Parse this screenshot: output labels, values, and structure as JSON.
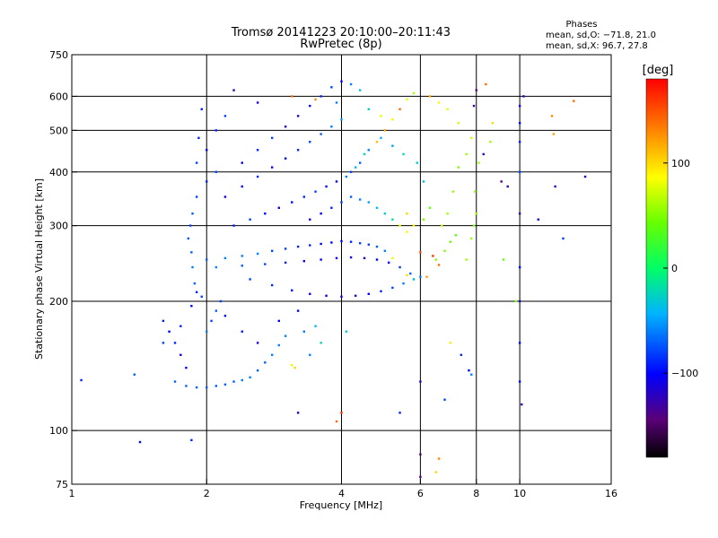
{
  "title": {
    "line1": "Tromsø 20141223 20:10:00–20:11:43",
    "line2": "RwPretec (8p)"
  },
  "stats": {
    "heading": "Phases",
    "line_o": "mean, sd,O: −71.8, 21.0",
    "line_x": "mean, sd,X: 96.7, 27.8"
  },
  "colorbar": {
    "unit_label": "[deg]",
    "range": [
      -180,
      180
    ],
    "ticks": [
      {
        "value": 100,
        "label": "100"
      },
      {
        "value": 0,
        "label": "0"
      },
      {
        "value": -100,
        "label": "−100"
      }
    ]
  },
  "chart_data": {
    "type": "scatter",
    "xlabel": "Frequency [MHz]",
    "ylabel": "Stationary phase Virtual Height [km]",
    "xscale": "log",
    "yscale": "log",
    "xlim": [
      1,
      16
    ],
    "ylim": [
      75,
      750
    ],
    "xticks": [
      {
        "value": 1,
        "label": "1"
      },
      {
        "value": 2,
        "label": "2"
      },
      {
        "value": 4,
        "label": "4"
      },
      {
        "value": 6,
        "label": "6"
      },
      {
        "value": 8,
        "label": "8"
      },
      {
        "value": 10,
        "label": "10"
      },
      {
        "value": 16,
        "label": "16"
      }
    ],
    "yticks": [
      {
        "value": 75,
        "label": "75"
      },
      {
        "value": 100,
        "label": "100"
      },
      {
        "value": 200,
        "label": "200"
      },
      {
        "value": 300,
        "label": "300"
      },
      {
        "value": 400,
        "label": "400"
      },
      {
        "value": 500,
        "label": "500"
      },
      {
        "value": 600,
        "label": "600"
      },
      {
        "value": 750,
        "label": "750"
      }
    ],
    "x_gridlines": [
      2,
      4,
      6,
      8,
      10
    ],
    "y_gridlines": [
      100,
      200,
      300,
      400,
      500,
      600
    ],
    "grid": true,
    "color_variable": "phase [deg]",
    "points": [
      [
        1.05,
        131,
        -90
      ],
      [
        1.42,
        94,
        -100
      ],
      [
        1.38,
        135,
        -70
      ],
      [
        1.6,
        160,
        -80
      ],
      [
        1.7,
        130,
        -70
      ],
      [
        1.8,
        127,
        -70
      ],
      [
        1.9,
        126,
        -70
      ],
      [
        2.0,
        126,
        -70
      ],
      [
        2.1,
        127,
        -70
      ],
      [
        2.2,
        128,
        -70
      ],
      [
        2.3,
        130,
        -70
      ],
      [
        2.4,
        131,
        -60
      ],
      [
        2.5,
        133,
        -60
      ],
      [
        2.6,
        138,
        -70
      ],
      [
        2.7,
        144,
        -70
      ],
      [
        2.8,
        150,
        -60
      ],
      [
        2.9,
        158,
        -60
      ],
      [
        3.0,
        166,
        -60
      ],
      [
        1.75,
        175,
        -90
      ],
      [
        1.85,
        195,
        -100
      ],
      [
        1.95,
        205,
        -80
      ],
      [
        2.2,
        185,
        -100
      ],
      [
        2.4,
        170,
        -90
      ],
      [
        2.6,
        160,
        -110
      ],
      [
        2.9,
        180,
        -100
      ],
      [
        3.2,
        190,
        -100
      ],
      [
        3.3,
        170,
        -60
      ],
      [
        3.4,
        150,
        -60
      ],
      [
        3.1,
        142,
        80
      ],
      [
        3.15,
        140,
        100
      ],
      [
        1.85,
        260,
        -70
      ],
      [
        1.82,
        280,
        -70
      ],
      [
        1.84,
        300,
        -80
      ],
      [
        1.86,
        320,
        -70
      ],
      [
        1.9,
        350,
        -80
      ],
      [
        1.9,
        420,
        -80
      ],
      [
        1.92,
        480,
        -90
      ],
      [
        1.95,
        560,
        -90
      ],
      [
        1.86,
        240,
        -60
      ],
      [
        1.88,
        220,
        -70
      ],
      [
        1.9,
        210,
        -90
      ],
      [
        2.0,
        250,
        -70
      ],
      [
        2.2,
        252,
        -60
      ],
      [
        2.4,
        255,
        -60
      ],
      [
        2.6,
        258,
        -60
      ],
      [
        2.8,
        262,
        -80
      ],
      [
        3.0,
        265,
        -80
      ],
      [
        3.2,
        268,
        -90
      ],
      [
        3.4,
        270,
        -90
      ],
      [
        3.6,
        272,
        -100
      ],
      [
        3.8,
        274,
        -100
      ],
      [
        4.0,
        276,
        -100
      ],
      [
        4.2,
        275,
        -90
      ],
      [
        4.4,
        273,
        -80
      ],
      [
        4.6,
        271,
        -80
      ],
      [
        4.8,
        268,
        -70
      ],
      [
        5.0,
        262,
        -60
      ],
      [
        5.2,
        252,
        80
      ],
      [
        5.4,
        240,
        100
      ],
      [
        5.6,
        230,
        100
      ],
      [
        5.8,
        225,
        110
      ],
      [
        2.1,
        240,
        -60
      ],
      [
        2.4,
        242,
        -70
      ],
      [
        2.7,
        244,
        -80
      ],
      [
        3.0,
        246,
        -90
      ],
      [
        3.3,
        248,
        -100
      ],
      [
        3.6,
        250,
        -100
      ],
      [
        3.9,
        252,
        -110
      ],
      [
        4.2,
        253,
        -110
      ],
      [
        4.5,
        252,
        -110
      ],
      [
        4.8,
        250,
        -100
      ],
      [
        5.1,
        246,
        -100
      ],
      [
        5.4,
        240,
        -80
      ],
      [
        5.7,
        232,
        -70
      ],
      [
        6.0,
        228,
        -60
      ],
      [
        2.5,
        225,
        -80
      ],
      [
        2.8,
        218,
        -90
      ],
      [
        3.1,
        212,
        -100
      ],
      [
        3.4,
        208,
        -110
      ],
      [
        3.7,
        206,
        -110
      ],
      [
        4.0,
        205,
        -110
      ],
      [
        4.3,
        206,
        -110
      ],
      [
        4.6,
        208,
        -100
      ],
      [
        4.9,
        211,
        -90
      ],
      [
        5.2,
        215,
        -80
      ],
      [
        5.5,
        220,
        -60
      ],
      [
        5.8,
        225,
        -40
      ],
      [
        6.2,
        228,
        120
      ],
      [
        6.6,
        243,
        140
      ],
      [
        6.4,
        255,
        160
      ],
      [
        6.0,
        260,
        150
      ],
      [
        6.5,
        250,
        55
      ],
      [
        6.8,
        262,
        50
      ],
      [
        7.0,
        275,
        45
      ],
      [
        7.2,
        285,
        40
      ],
      [
        6.7,
        300,
        70
      ],
      [
        6.9,
        320,
        60
      ],
      [
        7.1,
        360,
        55
      ],
      [
        7.3,
        410,
        50
      ],
      [
        7.6,
        250,
        60
      ],
      [
        7.8,
        280,
        55
      ],
      [
        7.9,
        300,
        50
      ],
      [
        8.0,
        320,
        55
      ],
      [
        7.95,
        360,
        50
      ],
      [
        8.1,
        420,
        60
      ],
      [
        7.8,
        480,
        70
      ],
      [
        2.3,
        300,
        -90
      ],
      [
        2.5,
        310,
        -80
      ],
      [
        2.7,
        320,
        -100
      ],
      [
        2.9,
        330,
        -110
      ],
      [
        3.1,
        340,
        -100
      ],
      [
        3.3,
        350,
        -90
      ],
      [
        3.5,
        360,
        -80
      ],
      [
        3.7,
        370,
        -100
      ],
      [
        3.9,
        380,
        -110
      ],
      [
        4.1,
        390,
        -60
      ],
      [
        4.3,
        410,
        -40
      ],
      [
        4.5,
        440,
        -20
      ],
      [
        4.8,
        470,
        110
      ],
      [
        5.0,
        500,
        120
      ],
      [
        5.2,
        530,
        90
      ],
      [
        5.4,
        560,
        140
      ],
      [
        5.6,
        590,
        80
      ],
      [
        5.8,
        610,
        60
      ],
      [
        2.4,
        420,
        -100
      ],
      [
        2.6,
        450,
        -90
      ],
      [
        2.8,
        480,
        -80
      ],
      [
        3.0,
        510,
        -110
      ],
      [
        3.2,
        540,
        -120
      ],
      [
        3.4,
        570,
        -100
      ],
      [
        3.6,
        600,
        -90
      ],
      [
        3.8,
        630,
        -80
      ],
      [
        4.0,
        650,
        -100
      ],
      [
        4.2,
        640,
        -60
      ],
      [
        4.4,
        620,
        -40
      ],
      [
        2.3,
        620,
        -120
      ],
      [
        2.6,
        580,
        -110
      ],
      [
        3.1,
        600,
        140
      ],
      [
        3.5,
        590,
        130
      ],
      [
        3.9,
        580,
        -60
      ],
      [
        4.6,
        560,
        -30
      ],
      [
        4.9,
        540,
        80
      ],
      [
        6.3,
        600,
        120
      ],
      [
        6.6,
        580,
        90
      ],
      [
        6.9,
        560,
        80
      ],
      [
        7.3,
        520,
        70
      ],
      [
        7.6,
        440,
        60
      ],
      [
        8.3,
        440,
        -120
      ],
      [
        8.6,
        470,
        60
      ],
      [
        8.7,
        520,
        100
      ],
      [
        9.1,
        380,
        -140
      ],
      [
        9.4,
        370,
        -120
      ],
      [
        8.4,
        640,
        140
      ],
      [
        8.0,
        620,
        -140
      ],
      [
        7.9,
        570,
        -130
      ],
      [
        10.2,
        600,
        -120
      ],
      [
        10.0,
        570,
        -110
      ],
      [
        10.0,
        520,
        -100
      ],
      [
        10.0,
        470,
        -90
      ],
      [
        10.0,
        400,
        -80
      ],
      [
        10.0,
        320,
        -130
      ],
      [
        10.0,
        240,
        -100
      ],
      [
        10.0,
        200,
        -120
      ],
      [
        10.0,
        160,
        -100
      ],
      [
        10.0,
        130,
        -100
      ],
      [
        10.1,
        115,
        -130
      ],
      [
        11.8,
        540,
        130
      ],
      [
        11.9,
        490,
        120
      ],
      [
        12.0,
        370,
        -120
      ],
      [
        12.5,
        280,
        -80
      ],
      [
        13.2,
        585,
        140
      ],
      [
        14.0,
        390,
        -110
      ],
      [
        11.0,
        310,
        -100
      ],
      [
        9.2,
        250,
        40
      ],
      [
        9.8,
        200,
        50
      ],
      [
        7.0,
        160,
        80
      ],
      [
        7.4,
        150,
        -90
      ],
      [
        7.7,
        138,
        -100
      ],
      [
        7.8,
        135,
        -60
      ],
      [
        6.0,
        88,
        -150
      ],
      [
        6.0,
        78,
        -140
      ],
      [
        6.6,
        86,
        130
      ],
      [
        6.5,
        80,
        100
      ],
      [
        6.8,
        118,
        -80
      ],
      [
        6.0,
        130,
        -120
      ],
      [
        4.0,
        110,
        160
      ],
      [
        3.9,
        105,
        140
      ],
      [
        3.2,
        110,
        -110
      ],
      [
        5.4,
        110,
        -90
      ],
      [
        1.85,
        95,
        -90
      ],
      [
        2.0,
        170,
        -60
      ],
      [
        2.05,
        180,
        -80
      ],
      [
        2.1,
        190,
        -70
      ],
      [
        2.15,
        200,
        -80
      ],
      [
        1.8,
        140,
        -100
      ],
      [
        1.75,
        150,
        -110
      ],
      [
        1.7,
        160,
        -90
      ],
      [
        1.65,
        170,
        -100
      ],
      [
        1.6,
        180,
        -90
      ],
      [
        4.1,
        170,
        -30
      ],
      [
        3.6,
        160,
        -20
      ],
      [
        3.5,
        175,
        -40
      ],
      [
        5.6,
        320,
        100
      ],
      [
        5.8,
        300,
        90
      ],
      [
        6.1,
        310,
        50
      ],
      [
        6.3,
        330,
        40
      ],
      [
        6.1,
        380,
        -40
      ],
      [
        5.9,
        420,
        -30
      ],
      [
        5.5,
        440,
        -20
      ],
      [
        5.2,
        460,
        -50
      ],
      [
        4.9,
        480,
        -40
      ],
      [
        4.6,
        450,
        -60
      ],
      [
        4.4,
        420,
        -70
      ],
      [
        4.2,
        400,
        -80
      ],
      [
        2.2,
        350,
        -110
      ],
      [
        2.4,
        370,
        -100
      ],
      [
        2.6,
        390,
        -90
      ],
      [
        2.8,
        410,
        -110
      ],
      [
        3.0,
        430,
        -100
      ],
      [
        3.2,
        450,
        -90
      ],
      [
        3.4,
        470,
        -80
      ],
      [
        3.6,
        490,
        -70
      ],
      [
        3.8,
        510,
        -60
      ],
      [
        4.0,
        530,
        -50
      ],
      [
        2.0,
        380,
        -90
      ],
      [
        2.1,
        400,
        -80
      ],
      [
        2.0,
        450,
        -100
      ],
      [
        2.1,
        500,
        -90
      ],
      [
        2.2,
        540,
        -80
      ],
      [
        3.4,
        310,
        -110
      ],
      [
        3.6,
        320,
        -100
      ],
      [
        3.8,
        330,
        -90
      ],
      [
        4.0,
        340,
        -80
      ],
      [
        4.2,
        350,
        -70
      ],
      [
        4.4,
        345,
        -60
      ],
      [
        4.6,
        340,
        -50
      ],
      [
        4.8,
        330,
        -40
      ],
      [
        5.0,
        320,
        -30
      ],
      [
        5.2,
        310,
        -20
      ],
      [
        5.4,
        300,
        80
      ],
      [
        5.6,
        290,
        90
      ]
    ]
  }
}
